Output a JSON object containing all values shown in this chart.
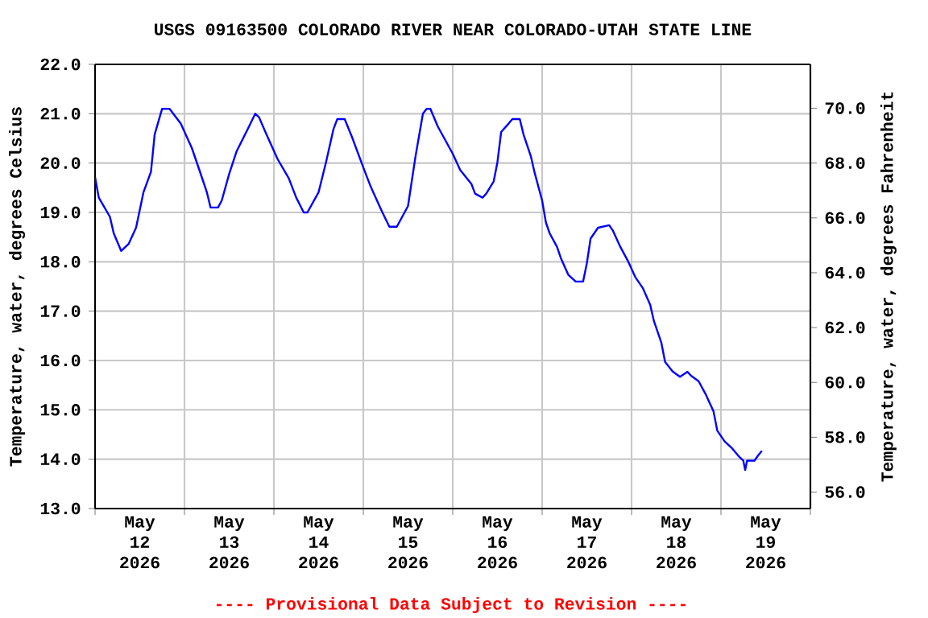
{
  "chart_data": {
    "type": "line",
    "title": "USGS 09163500 COLORADO RIVER NEAR COLORADO-UTAH STATE LINE",
    "ylabel": "Temperature, water, degrees Celsius",
    "y2label": "Temperature, water, degrees Fahrenheit",
    "annotations": [
      "---- Provisional Data Subject to Revision ----"
    ],
    "x": [
      "2026-05-12T00:00",
      "2026-05-12T01:00",
      "2026-05-12T04:00",
      "2026-05-12T05:00",
      "2026-05-12T07:00",
      "2026-05-12T09:00",
      "2026-05-12T11:00",
      "2026-05-12T13:00",
      "2026-05-12T15:00",
      "2026-05-12T16:00",
      "2026-05-12T18:00",
      "2026-05-12T20:00",
      "2026-05-12T23:00",
      "2026-05-13T02:00",
      "2026-05-13T04:00",
      "2026-05-13T06:00",
      "2026-05-13T07:00",
      "2026-05-13T09:00",
      "2026-05-13T10:00",
      "2026-05-13T12:00",
      "2026-05-13T14:00",
      "2026-05-13T17:00",
      "2026-05-13T19:00",
      "2026-05-13T20:00",
      "2026-05-13T22:00",
      "2026-05-14T01:00",
      "2026-05-14T04:00",
      "2026-05-14T06:00",
      "2026-05-14T08:00",
      "2026-05-14T09:00",
      "2026-05-14T12:00",
      "2026-05-14T14:00",
      "2026-05-14T16:00",
      "2026-05-14T17:00",
      "2026-05-14T19:00",
      "2026-05-14T21:00",
      "2026-05-15T00:00",
      "2026-05-15T02:00",
      "2026-05-15T05:00",
      "2026-05-15T07:00",
      "2026-05-15T09:00",
      "2026-05-15T12:00",
      "2026-05-15T14:00",
      "2026-05-15T16:00",
      "2026-05-15T17:00",
      "2026-05-15T18:00",
      "2026-05-15T20:00",
      "2026-05-16T00:00",
      "2026-05-16T02:00",
      "2026-05-16T05:00",
      "2026-05-16T06:00",
      "2026-05-16T08:00",
      "2026-05-16T09:00",
      "2026-05-16T11:00",
      "2026-05-16T12:00",
      "2026-05-16T13:00",
      "2026-05-16T15:00",
      "2026-05-16T16:00",
      "2026-05-16T18:00",
      "2026-05-16T19:00",
      "2026-05-16T21:00",
      "2026-05-16T22:00",
      "2026-05-17T00:00",
      "2026-05-17T01:00",
      "2026-05-17T02:00",
      "2026-05-17T04:00",
      "2026-05-17T05:00",
      "2026-05-17T07:00",
      "2026-05-17T09:00",
      "2026-05-17T11:00",
      "2026-05-17T12:00",
      "2026-05-17T13:00",
      "2026-05-17T15:00",
      "2026-05-17T18:00",
      "2026-05-17T19:00",
      "2026-05-17T21:00",
      "2026-05-17T23:00",
      "2026-05-18T01:00",
      "2026-05-18T03:00",
      "2026-05-18T05:00",
      "2026-05-18T06:00",
      "2026-05-18T08:00",
      "2026-05-18T09:00",
      "2026-05-18T11:00",
      "2026-05-18T13:00",
      "2026-05-18T15:00",
      "2026-05-18T16:00",
      "2026-05-18T18:00",
      "2026-05-18T20:00",
      "2026-05-18T22:00",
      "2026-05-18T23:00",
      "2026-05-19T01:00",
      "2026-05-19T03:00",
      "2026-05-19T05:00",
      "2026-05-19T06:00",
      "2026-05-19T06:30",
      "2026-05-19T07:00",
      "2026-05-19T09:00",
      "2026-05-19T10:00",
      "2026-05-19T11:00"
    ],
    "series": [
      {
        "color": "#0000ff",
        "values": [
          19.71,
          19.3,
          18.91,
          18.58,
          18.22,
          18.36,
          18.69,
          19.41,
          19.82,
          20.58,
          21.1,
          21.1,
          20.8,
          20.3,
          19.86,
          19.41,
          19.1,
          19.1,
          19.24,
          19.78,
          20.24,
          20.69,
          21.0,
          20.93,
          20.58,
          20.08,
          19.69,
          19.3,
          19.0,
          19.0,
          19.41,
          20.02,
          20.69,
          20.89,
          20.89,
          20.52,
          19.91,
          19.52,
          19.02,
          18.71,
          18.71,
          19.13,
          20.13,
          21.0,
          21.1,
          21.1,
          20.74,
          20.19,
          19.86,
          19.58,
          19.38,
          19.3,
          19.38,
          19.63,
          20.02,
          20.63,
          20.8,
          20.89,
          20.89,
          20.58,
          20.13,
          19.8,
          19.24,
          18.8,
          18.58,
          18.3,
          18.08,
          17.74,
          17.6,
          17.6,
          17.97,
          18.47,
          18.69,
          18.74,
          18.63,
          18.3,
          18.02,
          17.69,
          17.47,
          17.13,
          16.8,
          16.36,
          15.97,
          15.78,
          15.67,
          15.77,
          15.69,
          15.58,
          15.3,
          14.97,
          14.58,
          14.36,
          14.22,
          14.04,
          13.97,
          13.78,
          13.97,
          13.97,
          14.08,
          14.17
        ]
      }
    ],
    "xlim": [
      "2026-05-12T00:00",
      "2026-05-20T00:00"
    ],
    "xticks": [
      {
        "value": "2026-05-12T00:00",
        "label": null
      },
      {
        "value": "2026-05-12T12:00",
        "label": "May 12 2026"
      },
      {
        "value": "2026-05-13T00:00",
        "label": null
      },
      {
        "value": "2026-05-13T12:00",
        "label": "May 13 2026"
      },
      {
        "value": "2026-05-14T00:00",
        "label": null
      },
      {
        "value": "2026-05-14T12:00",
        "label": "May 14 2026"
      },
      {
        "value": "2026-05-15T00:00",
        "label": null
      },
      {
        "value": "2026-05-15T12:00",
        "label": "May 15 2026"
      },
      {
        "value": "2026-05-16T00:00",
        "label": null
      },
      {
        "value": "2026-05-16T12:00",
        "label": "May 16 2026"
      },
      {
        "value": "2026-05-17T00:00",
        "label": null
      },
      {
        "value": "2026-05-17T12:00",
        "label": "May 17 2026"
      },
      {
        "value": "2026-05-18T00:00",
        "label": null
      },
      {
        "value": "2026-05-18T12:00",
        "label": "May 18 2026"
      },
      {
        "value": "2026-05-19T00:00",
        "label": null
      },
      {
        "value": "2026-05-19T12:00",
        "label": "May 19 2026"
      },
      {
        "value": "2026-05-20T00:00",
        "label": null
      }
    ],
    "ylim": [
      13,
      22
    ],
    "yticks": [
      {
        "value": 13,
        "label": "13.0"
      },
      {
        "value": 14,
        "label": "14.0"
      },
      {
        "value": 15,
        "label": "15.0"
      },
      {
        "value": 16,
        "label": "16.0"
      },
      {
        "value": 17,
        "label": "17.0"
      },
      {
        "value": 18,
        "label": "18.0"
      },
      {
        "value": 19,
        "label": "19.0"
      },
      {
        "value": 20,
        "label": "20.0"
      },
      {
        "value": 21,
        "label": "21.0"
      },
      {
        "value": 22,
        "label": "22.0"
      }
    ],
    "y2lim": [
      55.4,
      71.6
    ],
    "y2ticks": [
      {
        "value": 56,
        "label": "56.0"
      },
      {
        "value": 58,
        "label": "58.0"
      },
      {
        "value": 60,
        "label": "60.0"
      },
      {
        "value": 62,
        "label": "62.0"
      },
      {
        "value": 64,
        "label": "64.0"
      },
      {
        "value": 66,
        "label": "66.0"
      },
      {
        "value": 68,
        "label": "68.0"
      },
      {
        "value": 70,
        "label": "70.0"
      }
    ],
    "grid": true,
    "marker": "none",
    "line_style": "solid"
  }
}
